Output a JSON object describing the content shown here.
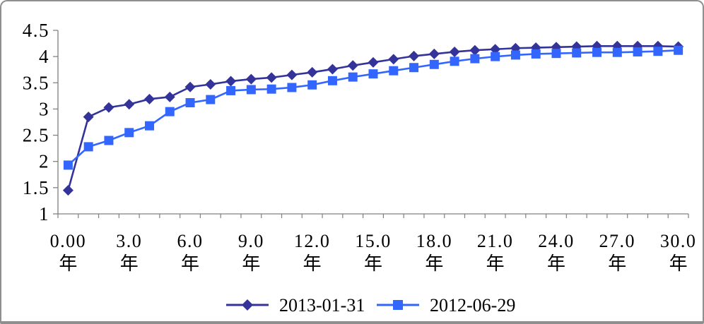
{
  "chart_data": {
    "type": "line",
    "title": "",
    "x": [
      0,
      1,
      2,
      3,
      4,
      5,
      6,
      7,
      8,
      9,
      10,
      11,
      12,
      13,
      14,
      15,
      16,
      17,
      18,
      19,
      20,
      21,
      22,
      23,
      24,
      25,
      26,
      27,
      28,
      29,
      30
    ],
    "x_unit_label": "年",
    "x_major_tick_positions": [
      0,
      3,
      6,
      9,
      12,
      15,
      18,
      21,
      24,
      27,
      30
    ],
    "x_major_tick_labels": [
      "0.00",
      "3.0",
      "6.0",
      "9.0",
      "12.0",
      "15.0",
      "18.0",
      "21.0",
      "24.0",
      "27.0",
      "30.0"
    ],
    "y_tick_values": [
      4.5,
      4,
      3.5,
      3,
      2.5,
      2,
      1.5,
      1
    ],
    "y_tick_labels": [
      "4.5",
      "4",
      "3.5",
      "3",
      "2.5",
      "2",
      "1.5",
      "1"
    ],
    "ylim": [
      1,
      4.5
    ],
    "grid": false,
    "legend_position": "bottom",
    "series": [
      {
        "name": "2013-01-31",
        "color": "#333399",
        "marker": "diamond",
        "values": [
          1.45,
          2.85,
          3.03,
          3.09,
          3.19,
          3.23,
          3.42,
          3.47,
          3.53,
          3.57,
          3.6,
          3.65,
          3.7,
          3.76,
          3.83,
          3.89,
          3.95,
          4.01,
          4.05,
          4.09,
          4.12,
          4.14,
          4.16,
          4.17,
          4.18,
          4.19,
          4.2,
          4.2,
          4.2,
          4.2,
          4.19
        ]
      },
      {
        "name": "2012-06-29",
        "color": "#3366FF",
        "marker": "square",
        "values": [
          1.93,
          2.28,
          2.4,
          2.55,
          2.68,
          2.95,
          3.12,
          3.18,
          3.35,
          3.37,
          3.38,
          3.41,
          3.46,
          3.54,
          3.61,
          3.67,
          3.73,
          3.79,
          3.85,
          3.91,
          3.96,
          4.0,
          4.03,
          4.05,
          4.06,
          4.07,
          4.08,
          4.08,
          4.09,
          4.1,
          4.12
        ]
      }
    ]
  },
  "colors": {
    "series1": "#333399",
    "series2": "#3366FF",
    "axis": "#808080",
    "text": "#000000",
    "frame": "#8f8f8f",
    "background": "#ffffff"
  }
}
